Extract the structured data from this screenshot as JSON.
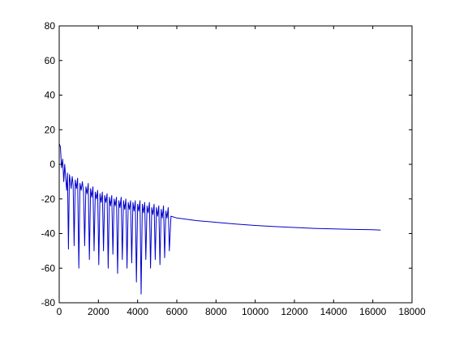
{
  "chart_data": {
    "type": "line",
    "title": "",
    "xlabel": "",
    "ylabel": "",
    "xlim": [
      0,
      18000
    ],
    "ylim": [
      -80,
      80
    ],
    "x_ticks": [
      0,
      2000,
      4000,
      6000,
      8000,
      10000,
      12000,
      14000,
      16000,
      18000
    ],
    "x_tick_labels": [
      "0",
      "2000",
      "4000",
      "6000",
      "8000",
      "10000",
      "12000",
      "14000",
      "16000",
      "18000"
    ],
    "y_ticks": [
      -80,
      -60,
      -40,
      -20,
      0,
      20,
      40,
      60,
      80
    ],
    "y_tick_labels": [
      "-80",
      "-60",
      "-40",
      "-20",
      "0",
      "20",
      "40",
      "60",
      "80"
    ],
    "grid": false,
    "legend": "none",
    "series": [
      {
        "color": "#0000cc",
        "x": [
          0,
          60,
          120,
          180,
          230,
          280,
          330,
          380,
          420,
          470,
          520,
          570,
          610,
          660,
          710,
          760,
          820,
          880,
          940,
          1000,
          1060,
          1120,
          1180,
          1240,
          1300,
          1360,
          1420,
          1480,
          1540,
          1600,
          1660,
          1720,
          1780,
          1840,
          1900,
          1960,
          2020,
          2080,
          2140,
          2200,
          2260,
          2320,
          2380,
          2440,
          2500,
          2560,
          2620,
          2680,
          2740,
          2800,
          2860,
          2920,
          2980,
          3040,
          3100,
          3160,
          3220,
          3280,
          3340,
          3400,
          3460,
          3520,
          3580,
          3640,
          3700,
          3760,
          3820,
          3880,
          3940,
          4000,
          4060,
          4120,
          4180,
          4240,
          4300,
          4360,
          4420,
          4480,
          4540,
          4600,
          4660,
          4720,
          4780,
          4840,
          4900,
          4960,
          5020,
          5080,
          5140,
          5200,
          5260,
          5320,
          5380,
          5440,
          5500,
          5560,
          5620,
          5700,
          6000,
          7000,
          8000,
          9000,
          10000,
          11000,
          12000,
          13000,
          14000,
          15000,
          16000,
          16400
        ],
        "y": [
          12,
          10,
          -2,
          3,
          -10,
          0,
          -8,
          -15,
          -5,
          -49,
          -6,
          -10,
          -14,
          -7,
          -12,
          -47,
          -9,
          -14,
          -8,
          -60,
          -11,
          -15,
          -10,
          -16,
          -47,
          -13,
          -17,
          -11,
          -55,
          -14,
          -19,
          -13,
          -50,
          -16,
          -20,
          -15,
          -58,
          -17,
          -22,
          -16,
          -50,
          -18,
          -22,
          -17,
          -60,
          -19,
          -24,
          -18,
          -52,
          -20,
          -24,
          -19,
          -63,
          -21,
          -25,
          -19,
          -55,
          -21,
          -26,
          -20,
          -60,
          -22,
          -26,
          -21,
          -57,
          -22,
          -27,
          -21,
          -68,
          -23,
          -27,
          -21,
          -75,
          -23,
          -28,
          -22,
          -55,
          -24,
          -28,
          -22,
          -60,
          -25,
          -29,
          -23,
          -55,
          -25,
          -30,
          -24,
          -58,
          -26,
          -31,
          -24,
          -54,
          -27,
          -31,
          -25,
          -50,
          -30,
          -31,
          -32.5,
          -33.5,
          -34.5,
          -35.3,
          -36,
          -36.5,
          -37,
          -37.3,
          -37.6,
          -37.8,
          -38
        ]
      }
    ]
  }
}
